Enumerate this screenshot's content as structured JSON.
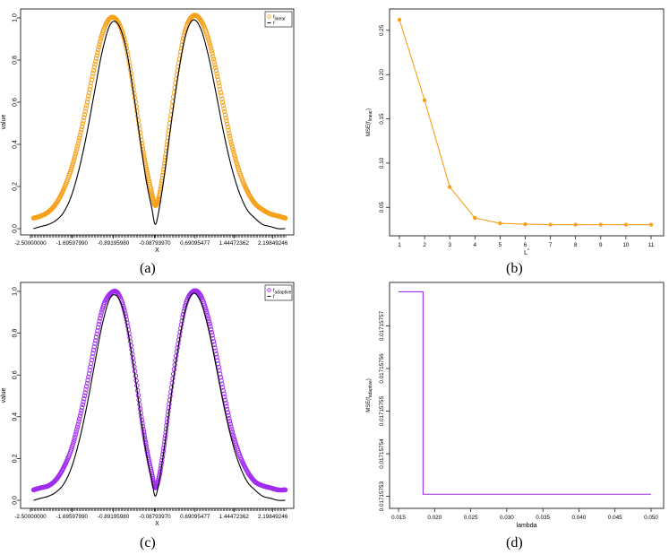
{
  "colors": {
    "orange": "#f7a11a",
    "purple": "#a02cf0",
    "black": "#000000"
  },
  "panels": [
    {
      "id": "a",
      "caption": "(a)",
      "ylabel": "value",
      "xlabel": "X",
      "legend": [
        "f_linear",
        "f"
      ]
    },
    {
      "id": "b",
      "caption": "(b)",
      "ylabel": "MSE(f_linear)",
      "xlabel": "L*"
    },
    {
      "id": "c",
      "caption": "(c)",
      "ylabel": "value",
      "xlabel": "X",
      "legend": [
        "f_adaptive",
        "f"
      ]
    },
    {
      "id": "d",
      "caption": "(d)",
      "ylabel": "MSE(f_adaptive)",
      "xlabel": "lambda"
    }
  ],
  "chart_data": [
    {
      "type": "line",
      "panel": "a",
      "xlabel": "X",
      "ylabel": "value",
      "xlim": [
        -2.5,
        2.5
      ],
      "ylim": [
        0,
        1
      ],
      "x_tick_labels": [
        "-2.50000000",
        "-1.69597990",
        "-0.89195980",
        "-0.08793970",
        "0.69095477",
        "1.44472362",
        "2.19849246"
      ],
      "x_ticks": [
        -2.5,
        -1.6959799,
        -0.8919598,
        -0.0879397,
        0.69095477,
        1.44472362,
        2.19849246
      ],
      "y_ticks": [
        0.0,
        0.2,
        0.4,
        0.6,
        0.8,
        1.0
      ],
      "y_tick_labels": [
        "0.0",
        "0.2",
        "0.4",
        "0.6",
        "0.8",
        "1.0"
      ],
      "legend_position": "top-right",
      "series": [
        {
          "name": "f_linear",
          "style": "points",
          "color": "#f7a11a",
          "x": [
            -2.44,
            -2.3,
            -2.15,
            -2.0,
            -1.85,
            -1.7,
            -1.55,
            -1.4,
            -1.25,
            -1.1,
            -0.95,
            -0.8,
            -0.65,
            -0.5,
            -0.35,
            -0.25,
            -0.15,
            -0.08,
            0.0,
            0.1,
            0.2,
            0.35,
            0.5,
            0.65,
            0.8,
            0.95,
            1.1,
            1.25,
            1.4,
            1.55,
            1.7,
            1.85,
            2.0,
            2.15,
            2.3,
            2.44
          ],
          "y": [
            0.05,
            0.06,
            0.08,
            0.12,
            0.19,
            0.29,
            0.43,
            0.6,
            0.78,
            0.93,
            1.0,
            0.98,
            0.87,
            0.66,
            0.42,
            0.28,
            0.17,
            0.11,
            0.16,
            0.31,
            0.5,
            0.75,
            0.94,
            1.01,
            0.99,
            0.9,
            0.75,
            0.57,
            0.4,
            0.27,
            0.18,
            0.12,
            0.09,
            0.07,
            0.06,
            0.05
          ]
        },
        {
          "name": "f",
          "style": "line",
          "color": "#000000",
          "x": [
            -2.44,
            -2.3,
            -2.15,
            -2.0,
            -1.85,
            -1.7,
            -1.55,
            -1.4,
            -1.25,
            -1.1,
            -0.95,
            -0.8,
            -0.65,
            -0.5,
            -0.35,
            -0.25,
            -0.15,
            -0.08,
            0.0,
            0.1,
            0.2,
            0.35,
            0.5,
            0.65,
            0.8,
            0.95,
            1.1,
            1.25,
            1.4,
            1.55,
            1.7,
            1.85,
            2.0,
            2.15,
            2.3,
            2.44
          ],
          "y": [
            0.0,
            0.01,
            0.02,
            0.04,
            0.08,
            0.16,
            0.29,
            0.46,
            0.66,
            0.85,
            0.97,
            0.97,
            0.86,
            0.64,
            0.38,
            0.22,
            0.1,
            0.02,
            0.1,
            0.26,
            0.45,
            0.71,
            0.91,
            0.99,
            0.95,
            0.82,
            0.64,
            0.45,
            0.29,
            0.17,
            0.09,
            0.05,
            0.02,
            0.01,
            0.0,
            0.0
          ]
        }
      ]
    },
    {
      "type": "line",
      "panel": "b",
      "xlabel": "L*",
      "ylabel": "MSE(f_linear)",
      "xlim": [
        1,
        11
      ],
      "ylim": [
        0.028,
        0.262
      ],
      "x_ticks": [
        1,
        2,
        3,
        4,
        5,
        6,
        7,
        8,
        9,
        10,
        11
      ],
      "y_ticks": [
        0.05,
        0.1,
        0.15,
        0.2,
        0.25
      ],
      "y_tick_labels": [
        "0.05",
        "0.10",
        "0.15",
        "0.20",
        "0.25"
      ],
      "series": [
        {
          "name": "MSE(f_linear)",
          "style": "line+points",
          "color": "#f7a11a",
          "x": [
            1,
            2,
            3,
            4,
            5,
            6,
            7,
            8,
            9,
            10,
            11
          ],
          "y": [
            0.262,
            0.171,
            0.073,
            0.038,
            0.032,
            0.031,
            0.0305,
            0.0305,
            0.0305,
            0.0305,
            0.0305
          ]
        }
      ]
    },
    {
      "type": "line",
      "panel": "c",
      "xlabel": "X",
      "ylabel": "value",
      "xlim": [
        -2.5,
        2.5
      ],
      "ylim": [
        0,
        1
      ],
      "x_tick_labels": [
        "-2.50000000",
        "-1.69597990",
        "-0.89195980",
        "-0.08793970",
        "0.69095477",
        "1.44472362",
        "2.19849246"
      ],
      "x_ticks": [
        -2.5,
        -1.6959799,
        -0.8919598,
        -0.0879397,
        0.69095477,
        1.44472362,
        2.19849246
      ],
      "y_ticks": [
        0.0,
        0.2,
        0.4,
        0.6,
        0.8,
        1.0
      ],
      "y_tick_labels": [
        "0.0",
        "0.2",
        "0.4",
        "0.6",
        "0.8",
        "1.0"
      ],
      "legend_position": "top-right",
      "series": [
        {
          "name": "f_adaptive",
          "style": "points",
          "color": "#a02cf0",
          "x": [
            -2.44,
            -2.3,
            -2.15,
            -2.0,
            -1.85,
            -1.7,
            -1.55,
            -1.4,
            -1.25,
            -1.1,
            -0.95,
            -0.8,
            -0.65,
            -0.5,
            -0.35,
            -0.25,
            -0.15,
            -0.08,
            0.0,
            0.1,
            0.2,
            0.35,
            0.5,
            0.65,
            0.8,
            0.95,
            1.1,
            1.25,
            1.4,
            1.55,
            1.7,
            1.85,
            2.0,
            2.15,
            2.3,
            2.44
          ],
          "y": [
            0.05,
            0.06,
            0.07,
            0.1,
            0.16,
            0.25,
            0.39,
            0.56,
            0.75,
            0.92,
            0.99,
            0.99,
            0.88,
            0.66,
            0.4,
            0.25,
            0.13,
            0.06,
            0.12,
            0.28,
            0.48,
            0.73,
            0.93,
            1.0,
            0.98,
            0.87,
            0.7,
            0.51,
            0.34,
            0.22,
            0.14,
            0.09,
            0.07,
            0.06,
            0.05,
            0.05
          ]
        },
        {
          "name": "f",
          "style": "line",
          "color": "#000000",
          "x": [
            -2.44,
            -2.3,
            -2.15,
            -2.0,
            -1.85,
            -1.7,
            -1.55,
            -1.4,
            -1.25,
            -1.1,
            -0.95,
            -0.8,
            -0.65,
            -0.5,
            -0.35,
            -0.25,
            -0.15,
            -0.08,
            0.0,
            0.1,
            0.2,
            0.35,
            0.5,
            0.65,
            0.8,
            0.95,
            1.1,
            1.25,
            1.4,
            1.55,
            1.7,
            1.85,
            2.0,
            2.15,
            2.3,
            2.44
          ],
          "y": [
            0.0,
            0.01,
            0.02,
            0.04,
            0.08,
            0.16,
            0.29,
            0.46,
            0.66,
            0.85,
            0.97,
            0.97,
            0.86,
            0.64,
            0.38,
            0.22,
            0.1,
            0.02,
            0.1,
            0.26,
            0.45,
            0.71,
            0.91,
            0.99,
            0.95,
            0.82,
            0.64,
            0.45,
            0.29,
            0.17,
            0.09,
            0.05,
            0.02,
            0.01,
            0.0,
            0.0
          ]
        }
      ]
    },
    {
      "type": "line",
      "panel": "d",
      "xlabel": "lambda",
      "ylabel": "MSE(f_adaptive)",
      "xlim": [
        0.015,
        0.05
      ],
      "ylim": [
        0.0171575295,
        0.0171575781
      ],
      "x_ticks": [
        0.015,
        0.02,
        0.025,
        0.03,
        0.035,
        0.04,
        0.045,
        0.05
      ],
      "x_tick_labels": [
        "0.015",
        "0.020",
        "0.025",
        "0.030",
        "0.035",
        "0.040",
        "0.045",
        "0.050"
      ],
      "y_ticks": [
        0.01715753,
        0.01715754,
        0.01715755,
        0.01715756,
        0.01715757
      ],
      "y_tick_labels": [
        "0.01715753",
        "0.01715754",
        "0.01715755",
        "0.01715756",
        "0.01715757"
      ],
      "series": [
        {
          "name": "MSE(f_adaptive)",
          "style": "step",
          "color": "#a02cf0",
          "x": [
            0.015,
            0.0184,
            0.0184,
            0.05
          ],
          "y": [
            0.017157578,
            0.017157578,
            0.0171575305,
            0.0171575305
          ]
        }
      ]
    }
  ]
}
